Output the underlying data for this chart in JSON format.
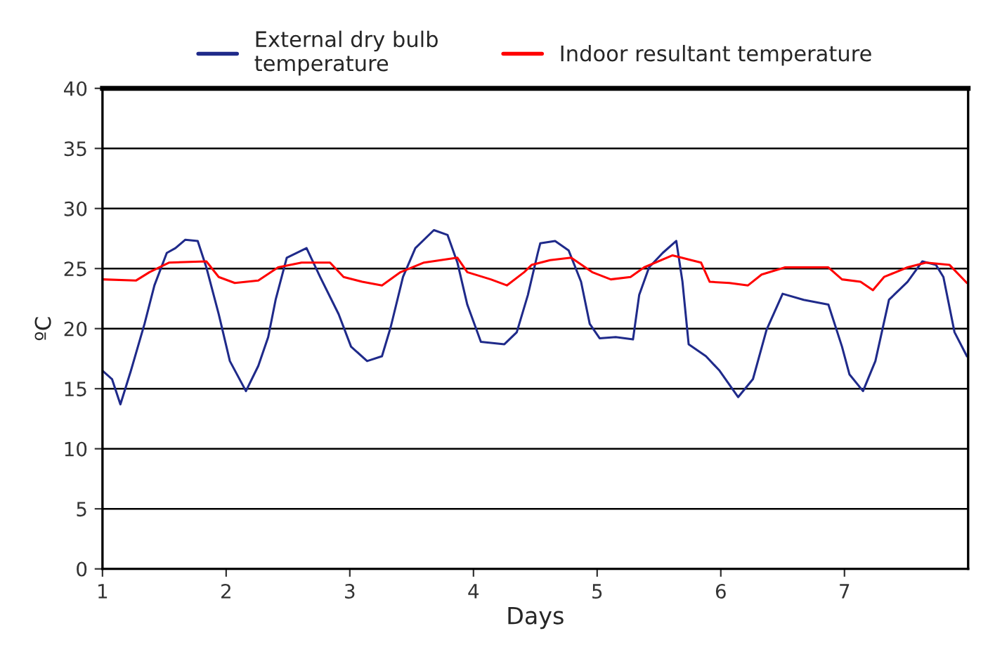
{
  "chart_data": {
    "type": "line",
    "xlabel": "Days",
    "ylabel": "ºC",
    "xlim": [
      1,
      8
    ],
    "xticks": [
      1,
      2,
      3,
      4,
      5,
      6,
      7
    ],
    "ylim": [
      0,
      40
    ],
    "yticks": [
      0,
      5,
      10,
      15,
      20,
      25,
      30,
      35,
      40
    ],
    "grid": "y",
    "legend": "top",
    "marker": "none",
    "line_style": "solid",
    "series": [
      {
        "name": "External dry bulb\ntemperature",
        "color": "#1f2a8a",
        "x": [
          1.0,
          1.077,
          1.145,
          1.23,
          1.34,
          1.42,
          1.52,
          1.59,
          1.67,
          1.77,
          1.84,
          1.94,
          2.03,
          2.16,
          2.26,
          2.34,
          2.4,
          2.49,
          2.65,
          2.76,
          2.91,
          3.01,
          3.14,
          3.26,
          3.33,
          3.43,
          3.53,
          3.68,
          3.79,
          3.87,
          3.95,
          4.06,
          4.25,
          4.35,
          4.44,
          4.52,
          4.54,
          4.66,
          4.77,
          4.87,
          4.94,
          5.02,
          5.15,
          5.29,
          5.34,
          5.42,
          5.53,
          5.64,
          5.69,
          5.74,
          5.88,
          5.99,
          6.14,
          6.26,
          6.37,
          6.5,
          6.67,
          6.87,
          6.98,
          7.04,
          7.15,
          7.25,
          7.36,
          7.51,
          7.63,
          7.74,
          7.8,
          7.89,
          7.99
        ],
        "values": [
          16.5,
          15.8,
          13.7,
          16.5,
          20.4,
          23.6,
          26.3,
          26.7,
          27.4,
          27.3,
          25.1,
          21.2,
          17.3,
          14.8,
          16.9,
          19.3,
          22.4,
          25.9,
          26.7,
          24.3,
          21.2,
          18.5,
          17.3,
          17.7,
          20.1,
          24.3,
          26.7,
          28.2,
          27.8,
          25.5,
          22.0,
          18.9,
          18.7,
          19.7,
          22.8,
          26.3,
          27.1,
          27.3,
          26.5,
          23.9,
          20.4,
          19.2,
          19.3,
          19.1,
          22.8,
          25.1,
          26.3,
          27.3,
          23.9,
          18.7,
          17.7,
          16.5,
          14.3,
          15.8,
          19.9,
          22.9,
          22.4,
          22.0,
          18.5,
          16.2,
          14.8,
          17.3,
          22.4,
          23.9,
          25.6,
          25.3,
          24.3,
          19.7,
          17.7
        ]
      },
      {
        "name": "Indoor resultant temperature",
        "color": "#ff0000",
        "x": [
          1.0,
          1.27,
          1.38,
          1.54,
          1.84,
          1.94,
          2.07,
          2.26,
          2.42,
          2.61,
          2.84,
          2.95,
          3.1,
          3.26,
          3.41,
          3.6,
          3.87,
          3.95,
          4.14,
          4.27,
          4.41,
          4.47,
          4.62,
          4.79,
          4.96,
          5.11,
          5.27,
          5.38,
          5.61,
          5.84,
          5.91,
          6.07,
          6.22,
          6.33,
          6.52,
          6.87,
          6.98,
          7.13,
          7.23,
          7.32,
          7.51,
          7.66,
          7.85,
          7.99
        ],
        "values": [
          24.1,
          24.0,
          24.7,
          25.5,
          25.6,
          24.3,
          23.8,
          24.0,
          25.1,
          25.5,
          25.5,
          24.3,
          23.9,
          23.6,
          24.7,
          25.5,
          25.9,
          24.7,
          24.1,
          23.6,
          24.7,
          25.3,
          25.7,
          25.9,
          24.7,
          24.1,
          24.3,
          25.1,
          26.1,
          25.5,
          23.9,
          23.8,
          23.6,
          24.5,
          25.1,
          25.1,
          24.1,
          23.9,
          23.2,
          24.3,
          25.1,
          25.5,
          25.3,
          23.8
        ]
      }
    ]
  }
}
